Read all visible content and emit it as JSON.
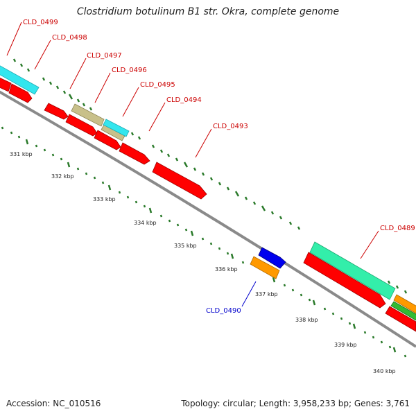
{
  "title": "Clostridium botulinum B1 str. Okra, complete genome",
  "footer": {
    "accession": "Accession: NC_010516",
    "summary": "Topology: circular; Length: 3,958,233 bp; Genes: 3,761"
  },
  "scale_labels": [
    "331 kbp",
    "332 kbp",
    "333 kbp",
    "334 kbp",
    "335 kbp",
    "336 kbp",
    "337 kbp",
    "338 kbp",
    "339 kbp",
    "340 kbp"
  ],
  "gene_labels": [
    {
      "name": "CLD_0499",
      "color": "#cc0000"
    },
    {
      "name": "CLD_0498",
      "color": "#cc0000"
    },
    {
      "name": "CLD_0497",
      "color": "#cc0000"
    },
    {
      "name": "CLD_0496",
      "color": "#cc0000"
    },
    {
      "name": "CLD_0495",
      "color": "#cc0000"
    },
    {
      "name": "CLD_0494",
      "color": "#cc0000"
    },
    {
      "name": "CLD_0493",
      "color": "#cc0000"
    },
    {
      "name": "CLD_0489",
      "color": "#cc0000"
    },
    {
      "name": "CLD_0490",
      "color": "#0000cc"
    }
  ],
  "colors": {
    "backbone": "#8a8a8a",
    "tick": "#2a7a2a",
    "cds_red": "#ff0000",
    "cyan": "#33e6ee",
    "khaki": "#c8c08a",
    "teal": "#33eeaa",
    "orange": "#ff9900",
    "blue": "#0000ee",
    "green": "#33bb33"
  }
}
